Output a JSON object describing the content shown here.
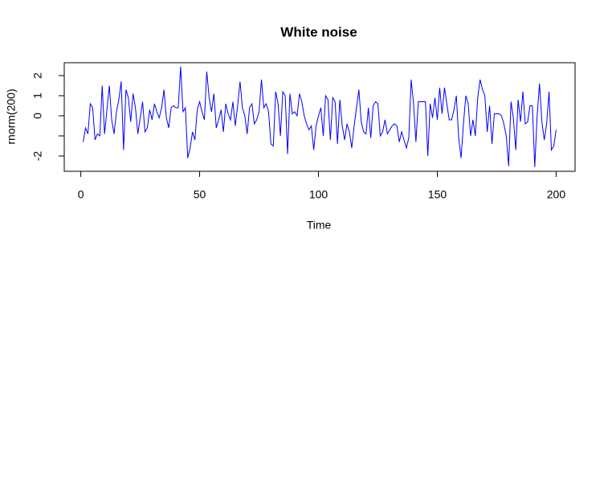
{
  "chart_data": {
    "type": "line",
    "title": "White noise",
    "xlabel": "Time",
    "ylabel": "rnorm(200)",
    "x": [
      1,
      2,
      3,
      4,
      5,
      6,
      7,
      8,
      9,
      10,
      11,
      12,
      13,
      14,
      15,
      16,
      17,
      18,
      19,
      20,
      21,
      22,
      23,
      24,
      25,
      26,
      27,
      28,
      29,
      30,
      31,
      32,
      33,
      34,
      35,
      36,
      37,
      38,
      39,
      40,
      41,
      42,
      43,
      44,
      45,
      46,
      47,
      48,
      49,
      50,
      51,
      52,
      53,
      54,
      55,
      56,
      57,
      58,
      59,
      60,
      61,
      62,
      63,
      64,
      65,
      66,
      67,
      68,
      69,
      70,
      71,
      72,
      73,
      74,
      75,
      76,
      77,
      78,
      79,
      80,
      81,
      82,
      83,
      84,
      85,
      86,
      87,
      88,
      89,
      90,
      91,
      92,
      93,
      94,
      95,
      96,
      97,
      98,
      99,
      100,
      101,
      102,
      103,
      104,
      105,
      106,
      107,
      108,
      109,
      110,
      111,
      112,
      113,
      114,
      115,
      116,
      117,
      118,
      119,
      120,
      121,
      122,
      123,
      124,
      125,
      126,
      127,
      128,
      129,
      130,
      131,
      132,
      133,
      134,
      135,
      136,
      137,
      138,
      139,
      140,
      141,
      142,
      143,
      144,
      145,
      146,
      147,
      148,
      149,
      150,
      151,
      152,
      153,
      154,
      155,
      156,
      157,
      158,
      159,
      160,
      161,
      162,
      163,
      164,
      165,
      166,
      167,
      168,
      169,
      170,
      171,
      172,
      173,
      174,
      175,
      176,
      177,
      178,
      179,
      180,
      181,
      182,
      183,
      184,
      185,
      186,
      187,
      188,
      189,
      190,
      191,
      192,
      193,
      194,
      195,
      196,
      197,
      198,
      199,
      200
    ],
    "values": [
      -1.3,
      -0.6,
      -0.9,
      0.6,
      0.4,
      -1.2,
      -0.9,
      -1.0,
      1.5,
      -0.9,
      0.3,
      1.5,
      -0.2,
      -0.9,
      0.2,
      0.8,
      1.7,
      -1.7,
      1.3,
      0.9,
      -0.3,
      1.1,
      0.4,
      -0.9,
      -0.1,
      0.7,
      -0.8,
      -0.6,
      0.3,
      -0.2,
      0.6,
      0.2,
      -0.1,
      0.4,
      1.3,
      -0.1,
      -0.6,
      0.4,
      0.5,
      0.4,
      0.4,
      2.45,
      0.2,
      0.4,
      -2.1,
      -1.6,
      -0.8,
      -1.2,
      0.3,
      0.7,
      0.2,
      -0.2,
      2.2,
      0.9,
      0.2,
      1.1,
      -0.6,
      -0.2,
      0.3,
      -0.8,
      0.6,
      0.1,
      -0.2,
      0.7,
      -0.5,
      0.5,
      1.7,
      0.4,
      0.0,
      -0.9,
      0.4,
      0.6,
      -0.4,
      -0.2,
      0.2,
      1.8,
      0.4,
      0.6,
      0.2,
      -1.4,
      -1.5,
      1.2,
      0.6,
      -1.0,
      1.2,
      1.0,
      -1.9,
      1.1,
      0.1,
      0.2,
      0.0,
      1.1,
      0.7,
      0.0,
      -0.4,
      -0.7,
      -0.5,
      -1.7,
      -0.5,
      0.0,
      0.4,
      -1.0,
      1.0,
      0.8,
      -1.2,
      0.9,
      0.7,
      -1.4,
      0.8,
      -0.5,
      -1.2,
      -0.4,
      -0.8,
      -1.6,
      -0.5,
      0.4,
      1.3,
      -0.3,
      -0.8,
      -0.9,
      0.4,
      -1.1,
      0.5,
      0.7,
      0.6,
      -1.0,
      -0.8,
      -0.2,
      -0.9,
      -0.7,
      -0.5,
      -0.4,
      -0.5,
      -1.3,
      -0.8,
      -1.2,
      -1.6,
      -1.1,
      1.8,
      0.6,
      -1.3,
      0.7,
      0.7,
      0.7,
      0.7,
      -2.0,
      0.6,
      -0.1,
      0.9,
      -0.2,
      1.4,
      0.1,
      1.4,
      0.6,
      -0.2,
      -0.2,
      0.3,
      1.0,
      -1.1,
      -2.1,
      -0.4,
      1.0,
      0.6,
      -1.0,
      -0.2,
      -1.0,
      0.9,
      1.8,
      1.3,
      1.0,
      -0.8,
      0.5,
      -1.4,
      0.1,
      0.1,
      0.1,
      0.0,
      -0.4,
      -1.0,
      -2.5,
      0.7,
      -0.1,
      -1.7,
      0.8,
      -0.3,
      1.2,
      -0.4,
      -0.3,
      0.5,
      0.5,
      -2.55,
      0.0,
      1.6,
      -0.3,
      -1.2,
      -0.4,
      1.2,
      -1.7,
      -1.5,
      -0.7
    ],
    "color": "#0000ff",
    "xlim": [
      -6.96,
      207.96
    ],
    "xticks": [
      0,
      50,
      100,
      150,
      200
    ],
    "ylim": [
      -2.76,
      2.64
    ],
    "yticks": [
      -2,
      {
        "value": -1,
        "label": null
      },
      0,
      1,
      2
    ]
  }
}
